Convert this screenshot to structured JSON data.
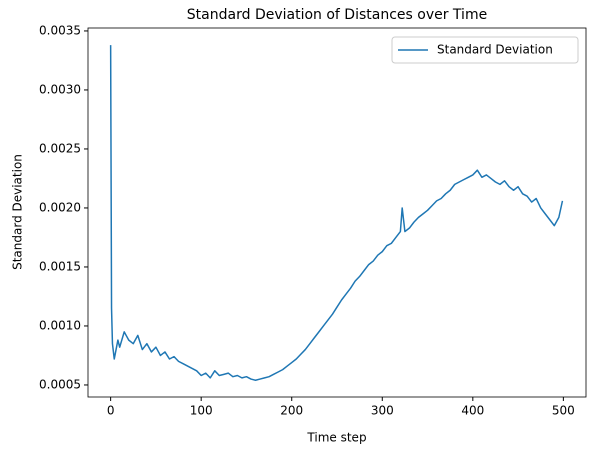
{
  "chart_data": {
    "type": "line",
    "title": "Standard Deviation of Distances over Time",
    "x_label": "Time step",
    "y_label": "Standard Deviation",
    "x": [
      0,
      1,
      2,
      4,
      6,
      8,
      10,
      15,
      20,
      25,
      30,
      35,
      40,
      45,
      50,
      55,
      60,
      65,
      70,
      75,
      80,
      85,
      90,
      95,
      100,
      105,
      110,
      115,
      120,
      125,
      130,
      135,
      140,
      145,
      150,
      155,
      160,
      165,
      170,
      175,
      180,
      185,
      190,
      195,
      200,
      205,
      210,
      215,
      220,
      225,
      230,
      235,
      240,
      245,
      250,
      255,
      260,
      265,
      270,
      275,
      280,
      285,
      290,
      295,
      300,
      305,
      310,
      315,
      320,
      322,
      325,
      330,
      335,
      340,
      345,
      350,
      355,
      360,
      365,
      370,
      375,
      380,
      385,
      390,
      395,
      400,
      405,
      410,
      415,
      420,
      425,
      430,
      435,
      440,
      445,
      450,
      455,
      460,
      465,
      470,
      475,
      480,
      485,
      490,
      495,
      499
    ],
    "series": [
      {
        "name": "Standard Deviation",
        "color": "#1f77b4",
        "values": [
          0.00338,
          0.00115,
          0.00085,
          0.00072,
          0.0008,
          0.00088,
          0.00082,
          0.00095,
          0.00088,
          0.00085,
          0.00092,
          0.0008,
          0.00085,
          0.00078,
          0.00082,
          0.00075,
          0.00078,
          0.00072,
          0.00074,
          0.0007,
          0.00068,
          0.00066,
          0.00064,
          0.00062,
          0.00058,
          0.0006,
          0.00056,
          0.00062,
          0.00058,
          0.00059,
          0.0006,
          0.00057,
          0.00058,
          0.00056,
          0.00057,
          0.00055,
          0.00054,
          0.00055,
          0.00056,
          0.00057,
          0.00059,
          0.00061,
          0.00063,
          0.00066,
          0.00069,
          0.00072,
          0.00076,
          0.0008,
          0.00085,
          0.0009,
          0.00095,
          0.001,
          0.00105,
          0.0011,
          0.00116,
          0.00122,
          0.00127,
          0.00132,
          0.00138,
          0.00142,
          0.00147,
          0.00152,
          0.00155,
          0.0016,
          0.00163,
          0.00168,
          0.0017,
          0.00175,
          0.0018,
          0.002,
          0.0018,
          0.00183,
          0.00188,
          0.00192,
          0.00195,
          0.00198,
          0.00202,
          0.00206,
          0.00208,
          0.00212,
          0.00215,
          0.0022,
          0.00222,
          0.00224,
          0.00226,
          0.00228,
          0.00232,
          0.00226,
          0.00228,
          0.00225,
          0.00222,
          0.0022,
          0.00223,
          0.00218,
          0.00215,
          0.00218,
          0.00212,
          0.0021,
          0.00205,
          0.00208,
          0.002,
          0.00195,
          0.0019,
          0.00185,
          0.00192,
          0.00206
        ]
      }
    ],
    "xlim": [
      -25,
      525
    ],
    "xticks": [
      0,
      100,
      200,
      300,
      400,
      500
    ],
    "ylim": [
      0.000398,
      0.003525
    ],
    "yticks": [
      {
        "value": 0.0005,
        "label": "0.0005"
      },
      {
        "value": 0.001,
        "label": "0.0010"
      },
      {
        "value": 0.0015,
        "label": "0.0015"
      },
      {
        "value": 0.002,
        "label": "0.0020"
      },
      {
        "value": 0.0025,
        "label": "0.0025"
      },
      {
        "value": 0.003,
        "label": "0.0030"
      },
      {
        "value": 0.0035,
        "label": "0.0035"
      }
    ],
    "legend": "upper right",
    "grid": false
  }
}
